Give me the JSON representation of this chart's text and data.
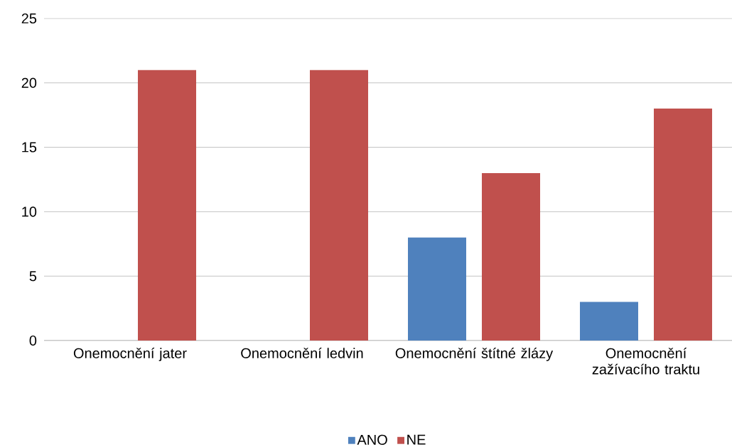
{
  "chart_data": {
    "type": "bar",
    "categories": [
      "Onemocnění jater",
      "Onemocnění ledvin",
      "Onemocnění štítné žlázy",
      "Onemocnění zažívacího traktu"
    ],
    "series": [
      {
        "name": "ANO",
        "color": "#4f81bd",
        "values": [
          0,
          0,
          8,
          3
        ]
      },
      {
        "name": "NE",
        "color": "#c0504d",
        "values": [
          21,
          21,
          13,
          18
        ]
      }
    ],
    "ylim": [
      0,
      25
    ],
    "yticks": [
      0,
      5,
      10,
      15,
      20,
      25
    ],
    "grid": "y",
    "legend": "bottom"
  }
}
